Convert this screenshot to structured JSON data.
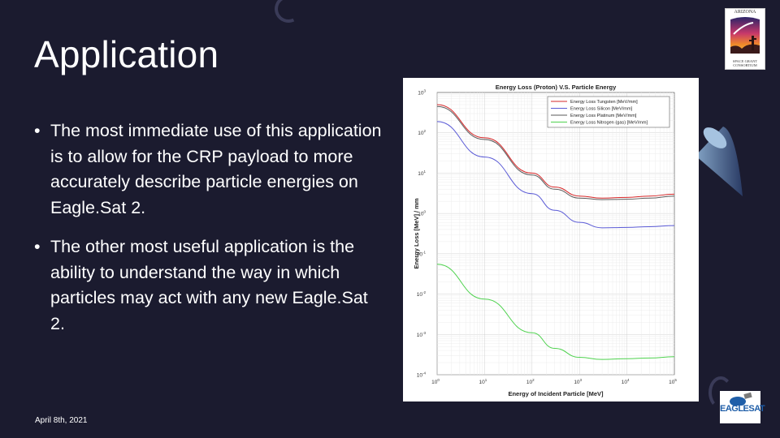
{
  "slide": {
    "title": "Application",
    "bullets": [
      "The most immediate use of this application is to allow for the CRP payload to more accurately describe particle energies on Eagle.Sat 2.",
      "The other most useful application is the ability to understand the way in which particles may act with any new Eagle.Sat 2."
    ],
    "date": "April 8th, 2021",
    "bullet_symbol": "•"
  },
  "logos": {
    "arizona": {
      "top_text": "ARIZONA",
      "bottom_text": "SPACE GRANT CONSORTIUM"
    },
    "eaglesat": {
      "text": "EAGLESAT",
      "sub_text": ""
    }
  },
  "colors": {
    "background": "#1b1b2f",
    "text": "#ffffff",
    "tungsten": "#d62728",
    "silicon": "#5a5ad6",
    "platinum": "#5a5a5a",
    "nitrogen": "#4ed24e"
  },
  "chart_data": {
    "type": "line",
    "title": "Energy Loss (Proton) V.S. Particle Energy",
    "xlabel": "Energy of Incident Particle [MeV]",
    "ylabel": "Energy Loss [MeV] / mm",
    "xscale": "log",
    "yscale": "log",
    "xlim": [
      1,
      100000
    ],
    "ylim": [
      0.0001,
      1000
    ],
    "x_ticks": [
      {
        "base": "10",
        "exp": "0"
      },
      {
        "base": "10",
        "exp": "1"
      },
      {
        "base": "10",
        "exp": "2"
      },
      {
        "base": "10",
        "exp": "3"
      },
      {
        "base": "10",
        "exp": "4"
      },
      {
        "base": "10",
        "exp": "5"
      }
    ],
    "y_ticks": [
      {
        "base": "10",
        "exp": "-4"
      },
      {
        "base": "10",
        "exp": "-3"
      },
      {
        "base": "10",
        "exp": "-2"
      },
      {
        "base": "10",
        "exp": "-1"
      },
      {
        "base": "10",
        "exp": "0"
      },
      {
        "base": "10",
        "exp": "1"
      },
      {
        "base": "10",
        "exp": "2"
      },
      {
        "base": "10",
        "exp": "3"
      }
    ],
    "grid": true,
    "legend_position": "top-right",
    "series": [
      {
        "name": "Energy Loss Tungsten [MeV/mm]",
        "color": "#d62728",
        "x": [
          1,
          10,
          100,
          300,
          1000,
          3000,
          10000,
          30000,
          100000
        ],
        "y": [
          500,
          75,
          10,
          4.5,
          2.7,
          2.4,
          2.5,
          2.7,
          3.0
        ]
      },
      {
        "name": "Energy Loss Silicon [MeV/mm]",
        "color": "#5a5ad6",
        "x": [
          1,
          10,
          100,
          300,
          1000,
          3000,
          10000,
          30000,
          100000
        ],
        "y": [
          190,
          25,
          3.1,
          1.2,
          0.6,
          0.44,
          0.45,
          0.47,
          0.5
        ]
      },
      {
        "name": "Energy Loss Platinum [MeV/mm]",
        "color": "#5a5a5a",
        "x": [
          1,
          10,
          100,
          300,
          1000,
          3000,
          10000,
          30000,
          100000
        ],
        "y": [
          450,
          68,
          9,
          4.0,
          2.4,
          2.2,
          2.25,
          2.4,
          2.7
        ]
      },
      {
        "name": "Energy Loss Nitrogen (gas) [MeV/mm]",
        "color": "#4ed24e",
        "x": [
          1,
          10,
          100,
          300,
          1000,
          3000,
          10000,
          30000,
          100000
        ],
        "y": [
          0.055,
          0.0075,
          0.0011,
          0.00045,
          0.00027,
          0.00024,
          0.00025,
          0.00026,
          0.00028
        ]
      }
    ]
  }
}
